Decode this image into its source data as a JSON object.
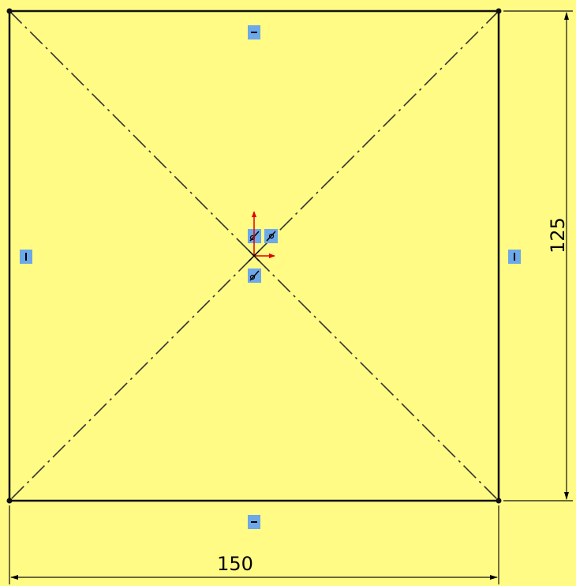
{
  "sketch": {
    "background_color": "#FFFB84",
    "line_color": "#111111",
    "construction_color": "#333333",
    "relation_badge_color": "#6DA8E8",
    "origin_color": "#E00000"
  },
  "dimensions": {
    "width_label": "150",
    "height_label": "125"
  },
  "relations": {
    "edge_top": "horizontal",
    "edge_bottom": "horizontal",
    "edge_left": "vertical",
    "edge_right": "vertical",
    "center": [
      "coincident",
      "coincident",
      "coincident"
    ]
  }
}
